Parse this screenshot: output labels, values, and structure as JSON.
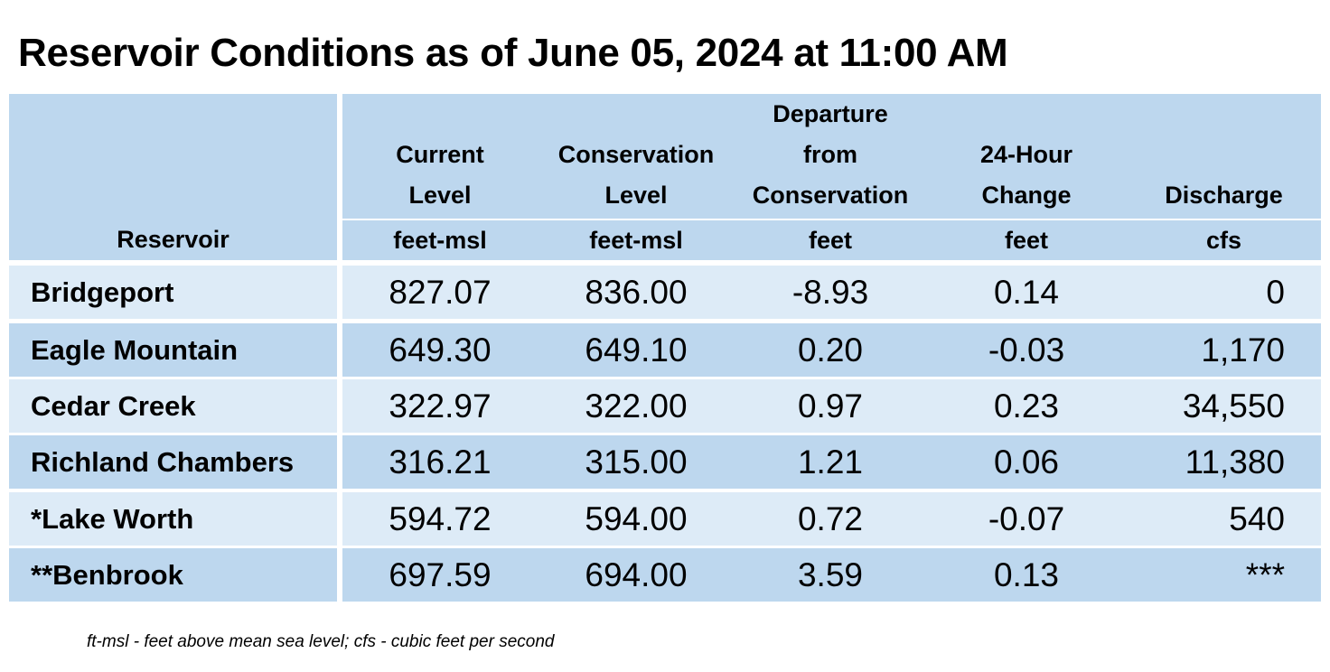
{
  "title": "Reservoir Conditions as of June 05, 2024 at 11:00 AM",
  "headers": {
    "reservoir": "Reservoir",
    "current_level": [
      "Current",
      "Level"
    ],
    "conservation_level": [
      "Conservation",
      "Level"
    ],
    "departure": [
      "Departure",
      "from",
      "Conservation"
    ],
    "change_24h": [
      "24-Hour",
      "Change"
    ],
    "discharge": [
      "Discharge"
    ]
  },
  "units": {
    "current_level": "feet-msl",
    "conservation_level": "feet-msl",
    "departure": "feet",
    "change_24h": "feet",
    "discharge": "cfs"
  },
  "rows": [
    {
      "name": "Bridgeport",
      "current": "827.07",
      "conservation": "836.00",
      "departure": "-8.93",
      "change": "0.14",
      "discharge": "0"
    },
    {
      "name": "Eagle Mountain",
      "current": "649.30",
      "conservation": "649.10",
      "departure": "0.20",
      "change": "-0.03",
      "discharge": "1,170"
    },
    {
      "name": "Cedar Creek",
      "current": "322.97",
      "conservation": "322.00",
      "departure": "0.97",
      "change": "0.23",
      "discharge": "34,550"
    },
    {
      "name": "Richland Chambers",
      "current": "316.21",
      "conservation": "315.00",
      "departure": "1.21",
      "change": "0.06",
      "discharge": "11,380"
    },
    {
      "name": "*Lake Worth",
      "current": "594.72",
      "conservation": "594.00",
      "departure": "0.72",
      "change": "-0.07",
      "discharge": "540"
    },
    {
      "name": "**Benbrook",
      "current": "697.59",
      "conservation": "694.00",
      "departure": "3.59",
      "change": "0.13",
      "discharge": "***"
    }
  ],
  "footnote": "ft-msl - feet above mean sea level; cfs - cubic feet per second",
  "colors": {
    "header_bg": "#bdd7ee",
    "row_light": "#ddebf7",
    "row_dark": "#bdd7ee"
  }
}
